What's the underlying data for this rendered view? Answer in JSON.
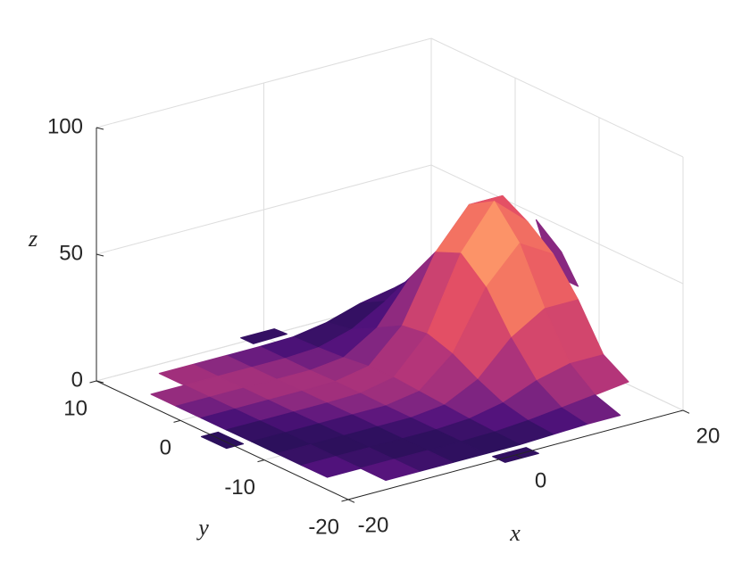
{
  "chart_data": {
    "type": "surface",
    "xlabel": "x",
    "ylabel": "y",
    "zlabel": "z",
    "x": [
      -20,
      -16,
      -12,
      -8,
      -4,
      0,
      4,
      8,
      12,
      16,
      20
    ],
    "y": [
      -20,
      -17,
      -14,
      -11,
      -8,
      -5,
      -2,
      1,
      4,
      7,
      10
    ],
    "z": [
      [
        null,
        null,
        null,
        null,
        null,
        0,
        null,
        null,
        null,
        null,
        null
      ],
      [
        null,
        null,
        0,
        0,
        0,
        0,
        0,
        1,
        1,
        null,
        null
      ],
      [
        null,
        0,
        0,
        0,
        0,
        0,
        1,
        3,
        6,
        6,
        null
      ],
      [
        null,
        0,
        0,
        0,
        0,
        0,
        2,
        8,
        18,
        18,
        null
      ],
      [
        null,
        0,
        0,
        0,
        0,
        0,
        4,
        18,
        40,
        40,
        null
      ],
      [
        0,
        0,
        0,
        0,
        0,
        0,
        5,
        27,
        60,
        60,
        27
      ],
      [
        null,
        0,
        0,
        0,
        0,
        1,
        6,
        29,
        64,
        64,
        null
      ],
      [
        null,
        0,
        0,
        0,
        0,
        0,
        4,
        22,
        48,
        48,
        null
      ],
      [
        null,
        0,
        0,
        0,
        0,
        0,
        2,
        11,
        24,
        24,
        null
      ],
      [
        null,
        null,
        0,
        0,
        0,
        0,
        1,
        4,
        9,
        null,
        null
      ],
      [
        null,
        null,
        null,
        null,
        null,
        0,
        null,
        null,
        null,
        null,
        null
      ]
    ],
    "xlim": [
      -20,
      20
    ],
    "ylim": [
      -20,
      10
    ],
    "zlim": [
      0,
      100
    ],
    "xticks": [
      -20,
      0,
      20
    ],
    "yticks": [
      -20,
      -10,
      0,
      10
    ],
    "zticks": [
      0,
      50,
      100
    ],
    "grid": true,
    "colormap": [
      "#2c105c",
      "#51127c",
      "#822681",
      "#b63679",
      "#e65164",
      "#fb8861",
      "#fec287"
    ]
  }
}
